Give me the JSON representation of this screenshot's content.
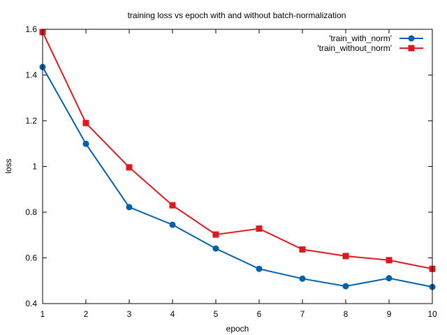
{
  "chart_data": {
    "type": "line",
    "title": "training loss vs epoch with and without batch-normalization",
    "xlabel": "epoch",
    "ylabel": "loss",
    "xlim": [
      1,
      10
    ],
    "ylim": [
      0.4,
      1.6
    ],
    "x": [
      1,
      2,
      3,
      4,
      5,
      6,
      7,
      8,
      9,
      10
    ],
    "xticks": [
      "1",
      "2",
      "3",
      "4",
      "5",
      "6",
      "7",
      "8",
      "9",
      "10"
    ],
    "yticks": [
      "0.4",
      "0.6",
      "0.8",
      "1",
      "1.2",
      "1.4",
      "1.6"
    ],
    "ytick_values": [
      0.4,
      0.6,
      0.8,
      1.0,
      1.2,
      1.4,
      1.6
    ],
    "grid": false,
    "legend_position": "top-right",
    "series": [
      {
        "name": "'train_with_norm'",
        "color": "#0060ad",
        "marker": "circle",
        "values": [
          1.435,
          1.099,
          0.822,
          0.745,
          0.641,
          0.552,
          0.509,
          0.476,
          0.511,
          0.473
        ]
      },
      {
        "name": "'train_without_norm'",
        "color": "#dd181f",
        "marker": "square",
        "values": [
          1.588,
          1.19,
          0.996,
          0.83,
          0.702,
          0.728,
          0.637,
          0.608,
          0.59,
          0.552
        ]
      }
    ]
  }
}
